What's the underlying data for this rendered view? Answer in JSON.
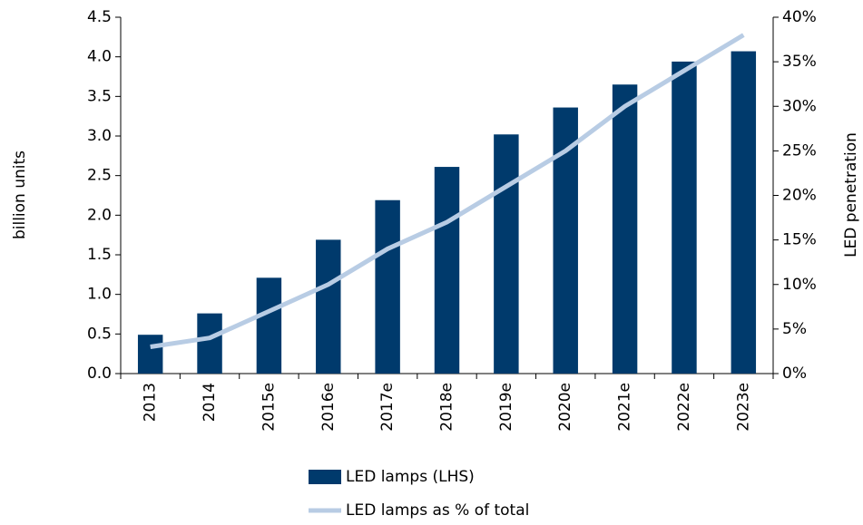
{
  "chart_data": {
    "type": "bar",
    "ylabel": "billion units",
    "y2label": "LED penetration",
    "categories": [
      "2013",
      "2014",
      "2015e",
      "2016e",
      "2017e",
      "2018e",
      "2019e",
      "2020e",
      "2021e",
      "2022e",
      "2023e"
    ],
    "series": [
      {
        "name": "LED lamps (LHS)",
        "type": "bar",
        "color": "#003a6c",
        "values": [
          0.49,
          0.76,
          1.21,
          1.69,
          2.19,
          2.61,
          3.02,
          3.36,
          3.65,
          3.94,
          4.07
        ]
      },
      {
        "name": "LED lamps as % of total",
        "type": "line",
        "axis": "y2",
        "color": "#b8cce4",
        "values": [
          3,
          4,
          7,
          10,
          14,
          17,
          21,
          25,
          30,
          34,
          38
        ]
      }
    ],
    "ylim": [
      0,
      4.5
    ],
    "yticks": [
      {
        "value": 0,
        "label": "0.0"
      },
      {
        "value": 0.5,
        "label": "0.5"
      },
      {
        "value": 1,
        "label": "1.0"
      },
      {
        "value": 1.5,
        "label": "1.5"
      },
      {
        "value": 2,
        "label": "2.0"
      },
      {
        "value": 2.5,
        "label": "2.5"
      },
      {
        "value": 3,
        "label": "3.0"
      },
      {
        "value": 3.5,
        "label": "3.5"
      },
      {
        "value": 4,
        "label": "4.0"
      },
      {
        "value": 4.5,
        "label": "4.5"
      }
    ],
    "y2lim": [
      0,
      40
    ],
    "y2ticks": [
      {
        "value": 0,
        "label": "0%"
      },
      {
        "value": 5,
        "label": "5%"
      },
      {
        "value": 10,
        "label": "10%"
      },
      {
        "value": 15,
        "label": "15%"
      },
      {
        "value": 20,
        "label": "20%"
      },
      {
        "value": 25,
        "label": "25%"
      },
      {
        "value": 30,
        "label": "30%"
      },
      {
        "value": 35,
        "label": "35%"
      },
      {
        "value": 40,
        "label": "40%"
      }
    ],
    "grid": false,
    "legend": "bottom"
  }
}
